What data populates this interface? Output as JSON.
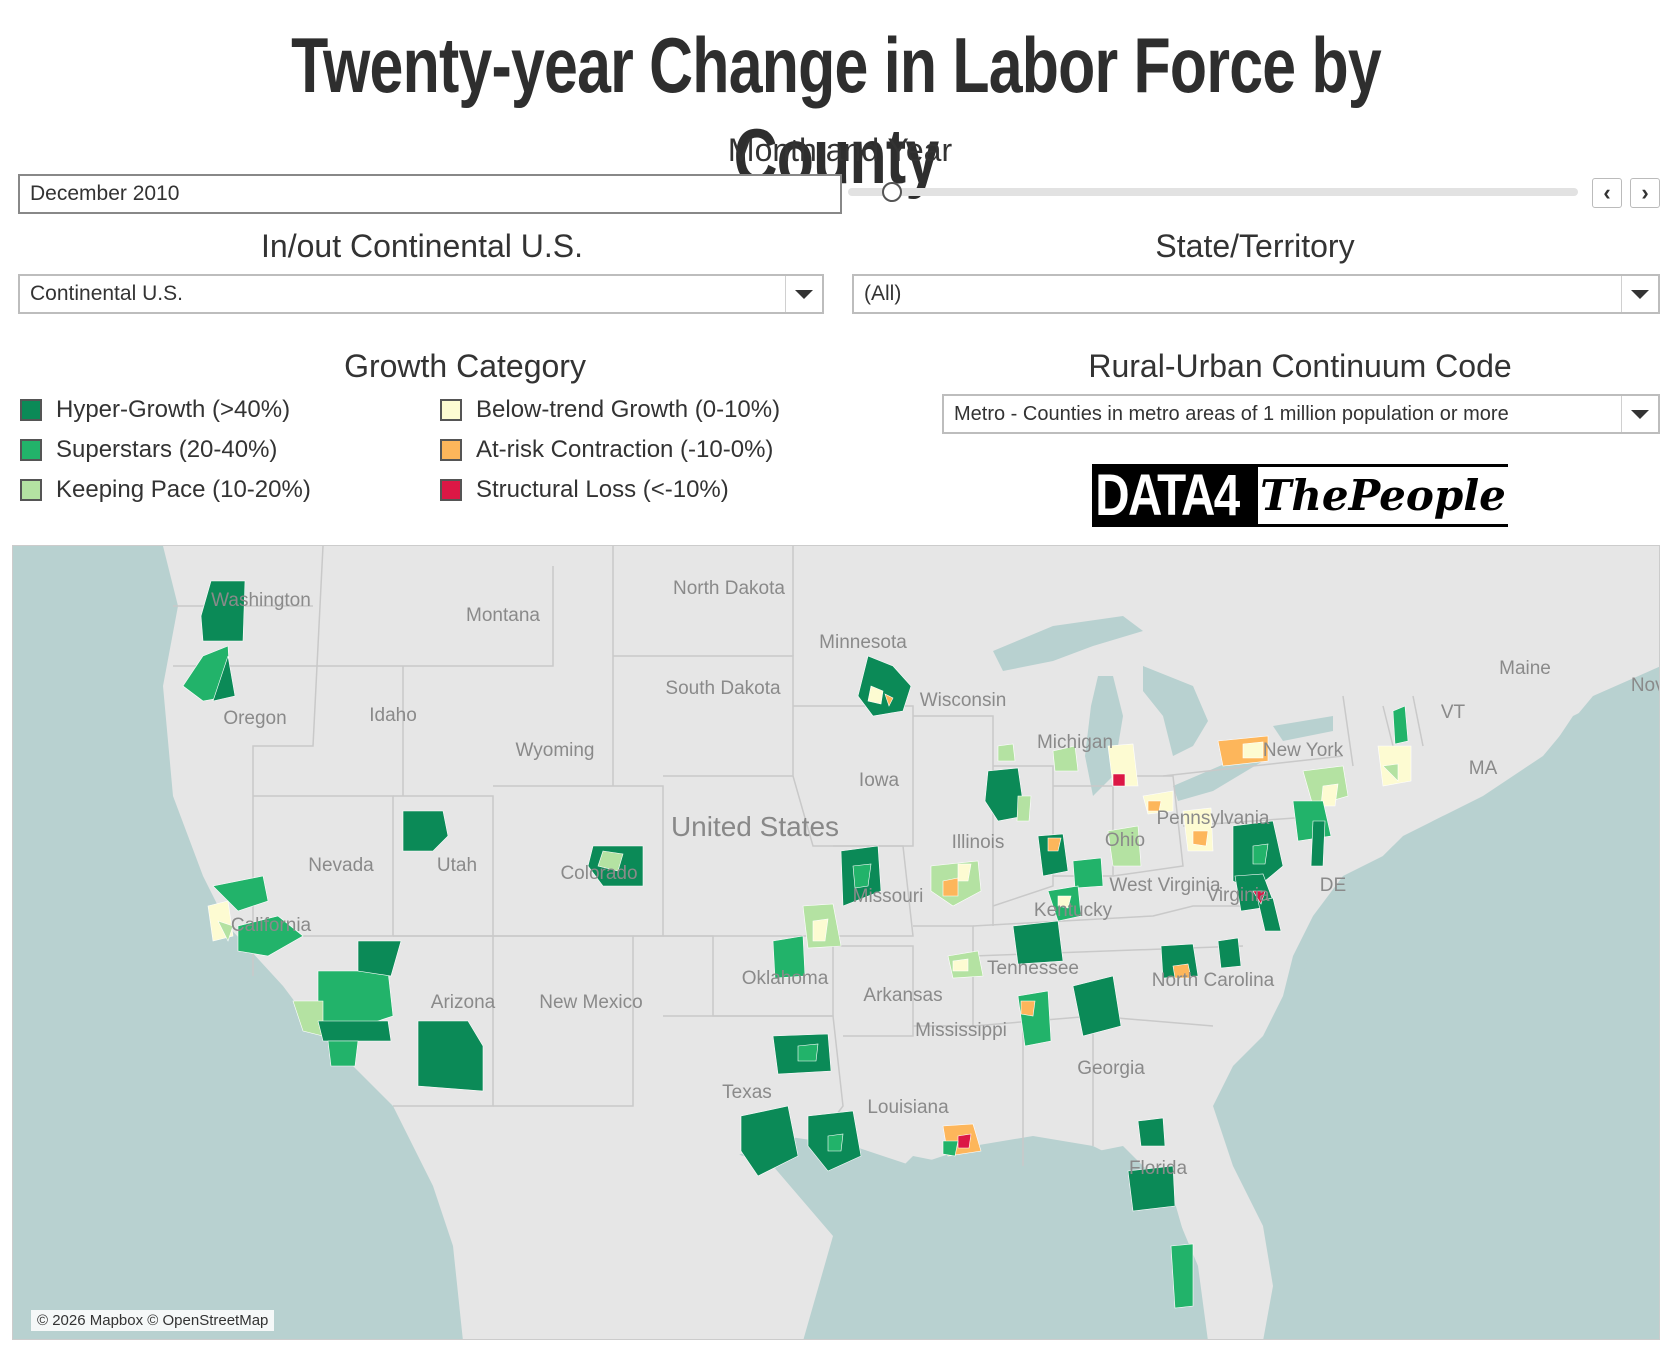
{
  "title": "Twenty-year Change in Labor Force by County",
  "month_year": {
    "label": "Month and Year",
    "value": "December 2010",
    "slider_position": 0.06
  },
  "in_out": {
    "label": "In/out Continental U.S.",
    "value": "Continental U.S."
  },
  "state": {
    "label": "State/Territory",
    "value": "(All)"
  },
  "growth": {
    "label": "Growth Category",
    "items": [
      {
        "label": "Hyper-Growth (>40%)",
        "color": "#0b8a57"
      },
      {
        "label": "Superstars (20-40%)",
        "color": "#22b36a"
      },
      {
        "label": "Keeping Pace (10-20%)",
        "color": "#b4e2a2"
      },
      {
        "label": "Below-trend Growth (0-10%)",
        "color": "#fdfbd2"
      },
      {
        "label": "At-risk Contraction (-10-0%)",
        "color": "#fdb65b"
      },
      {
        "label": "Structural Loss (<-10%)",
        "color": "#dc1745"
      }
    ]
  },
  "rucc": {
    "label": "Rural-Urban Continuum Code",
    "value": "Metro - Counties in metro areas of 1 million population or more"
  },
  "logo": {
    "left": "DATA4",
    "right": "ThePeople"
  },
  "map": {
    "country_label": "United States",
    "attribution": "© 2026 Mapbox © OpenStreetMap",
    "place_labels": [
      "Washington",
      "Montana",
      "North Dakota",
      "Minnesota",
      "Oregon",
      "Idaho",
      "South Dakota",
      "Wisconsin",
      "Wyoming",
      "Michigan",
      "New York",
      "Maine",
      "VT",
      "MA",
      "Nova",
      "Iowa",
      "Nevada",
      "Utah",
      "Illinois",
      "Pennsylvania",
      "Colorado",
      "Missouri",
      "Ohio",
      "West Virginia",
      "California",
      "Kentucky",
      "Virginia",
      "DE",
      "Tennessee",
      "North Carolina",
      "Oklahoma",
      "Arizona",
      "New Mexico",
      "Arkansas",
      "Mississippi",
      "Georgia",
      "Texas",
      "Louisiana",
      "Florida"
    ]
  }
}
